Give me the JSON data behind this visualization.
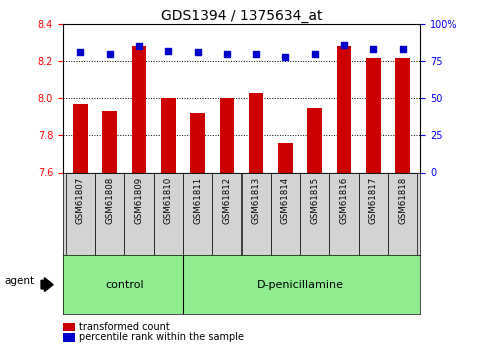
{
  "title": "GDS1394 / 1375634_at",
  "samples": [
    "GSM61807",
    "GSM61808",
    "GSM61809",
    "GSM61810",
    "GSM61811",
    "GSM61812",
    "GSM61813",
    "GSM61814",
    "GSM61815",
    "GSM61816",
    "GSM61817",
    "GSM61818"
  ],
  "transformed_count": [
    7.97,
    7.93,
    8.28,
    8.0,
    7.92,
    8.0,
    8.03,
    7.76,
    7.95,
    8.28,
    8.22,
    8.22
  ],
  "percentile_rank": [
    81,
    80,
    85,
    82,
    81,
    80,
    80,
    78,
    80,
    86,
    83,
    83
  ],
  "bar_color": "#cc0000",
  "dot_color": "#0000cc",
  "ylim_left": [
    7.6,
    8.4
  ],
  "ylim_right": [
    0,
    100
  ],
  "yticks_left": [
    7.6,
    7.8,
    8.0,
    8.2,
    8.4
  ],
  "yticks_right": [
    0,
    25,
    50,
    75,
    100
  ],
  "ytick_labels_right": [
    "0",
    "25",
    "50",
    "75",
    "100%"
  ],
  "grid_values": [
    7.8,
    8.0,
    8.2
  ],
  "control_indices": [
    0,
    1,
    2,
    3
  ],
  "dpen_indices": [
    4,
    5,
    6,
    7,
    8,
    9,
    10,
    11
  ],
  "control_label": "control",
  "dpen_label": "D-penicillamine",
  "agent_label": "agent",
  "legend_red_label": "transformed count",
  "legend_blue_label": "percentile rank within the sample",
  "bar_width": 0.5,
  "background_color": "#ffffff",
  "plot_bg_color": "#ffffff",
  "tick_label_area_bg": "#d3d3d3",
  "group_area_bg": "#90ee90",
  "title_fontsize": 10,
  "tick_fontsize": 7,
  "label_fontsize": 7.5,
  "group_fontsize": 8
}
